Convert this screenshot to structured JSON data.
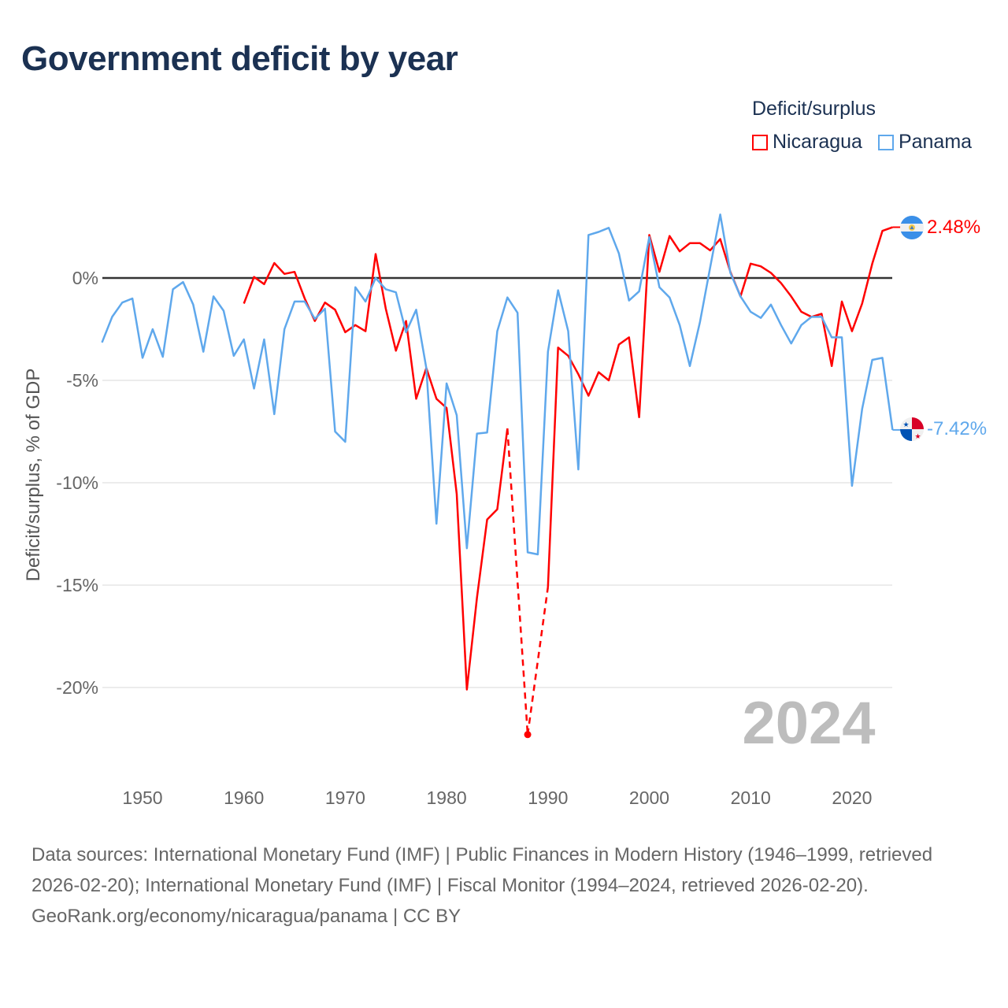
{
  "title": "Government deficit by year",
  "legend": {
    "title": "Deficit/surplus",
    "items": [
      {
        "label": "Nicaragua",
        "color": "#ff0000"
      },
      {
        "label": "Panama",
        "color": "#5fa8ec"
      }
    ]
  },
  "year_watermark": "2024",
  "end_labels": {
    "nicaragua": "2.48%",
    "panama": "-7.42%"
  },
  "footer": {
    "sources": "Data sources: International Monetary Fund (IMF) | Public Finances in Modern History (1946–1999, retrieved 2026-02-20); International Monetary Fund (IMF) | Fiscal Monitor (1994–2024, retrieved 2026-02-20).",
    "credit": "GeoRank.org/economy/nicaragua/panama | CC BY"
  },
  "chart_data": {
    "type": "line",
    "title": "Government deficit by year",
    "xlabel": "",
    "ylabel": "Deficit/surplus, % of GDP",
    "xlim": [
      1946,
      2024
    ],
    "ylim": [
      -24,
      4
    ],
    "x_ticks": [
      1950,
      1960,
      1970,
      1980,
      1990,
      2000,
      2010,
      2020
    ],
    "y_ticks": [
      {
        "v": 0,
        "label": "0%"
      },
      {
        "v": -5,
        "label": "-5%"
      },
      {
        "v": -10,
        "label": "-10%"
      },
      {
        "v": -15,
        "label": "-15%"
      },
      {
        "v": -20,
        "label": "-20%"
      }
    ],
    "grid": true,
    "legend_position": "top-right",
    "series": [
      {
        "name": "Nicaragua",
        "color": "#ff0000",
        "start_year": 1960,
        "values": [
          -1.25,
          0.05,
          -0.3,
          0.73,
          0.2,
          0.3,
          -1.0,
          -2.1,
          -1.2,
          -1.55,
          -2.65,
          -2.3,
          -2.6,
          1.17,
          -1.5,
          -3.55,
          -2.1,
          -5.9,
          -4.4,
          -5.9,
          -6.35,
          -10.55,
          -20.1,
          -15.6,
          -11.8,
          -11.3,
          -7.35,
          null,
          -22.3,
          null,
          -15.1,
          -3.4,
          -3.8,
          -4.7,
          -5.75,
          -4.6,
          -5.0,
          -3.25,
          -2.9,
          -6.8,
          2.1,
          0.3,
          2.05,
          1.3,
          1.7,
          1.7,
          1.35,
          1.9,
          0.3,
          -0.9,
          0.7,
          0.57,
          0.25,
          -0.25,
          -0.9,
          -1.65,
          -1.9,
          -1.75,
          -4.3,
          -1.15,
          -2.6,
          -1.25,
          0.7,
          2.3,
          2.48
        ]
      },
      {
        "name": "Panama",
        "color": "#5fa8ec",
        "start_year": 1946,
        "values": [
          -3.15,
          -1.9,
          -1.2,
          -1.0,
          -3.9,
          -2.5,
          -3.85,
          -0.55,
          -0.2,
          -1.3,
          -3.6,
          -0.9,
          -1.6,
          -3.8,
          -3.0,
          -5.4,
          -3.0,
          -6.65,
          -2.5,
          -1.15,
          -1.15,
          -2.0,
          -1.5,
          -7.5,
          -8.0,
          -0.45,
          -1.15,
          0.0,
          -0.55,
          -0.7,
          -2.65,
          -1.55,
          -4.4,
          -12.0,
          -5.15,
          -6.7,
          -13.2,
          -7.6,
          -7.55,
          -2.6,
          -0.95,
          -1.7,
          -13.4,
          -13.5,
          -3.6,
          -0.6,
          -2.6,
          -9.35,
          2.1,
          2.25,
          2.45,
          1.2,
          -1.1,
          -0.65,
          2.0,
          -0.45,
          -0.95,
          -2.3,
          -4.3,
          -2.15,
          0.5,
          3.1,
          0.25,
          -0.9,
          -1.65,
          -1.95,
          -1.3,
          -2.3,
          -3.2,
          -2.3,
          -1.9,
          -1.9,
          -2.9,
          -2.9,
          -10.15,
          -6.4,
          -4.0,
          -3.9,
          -7.42
        ]
      }
    ]
  }
}
